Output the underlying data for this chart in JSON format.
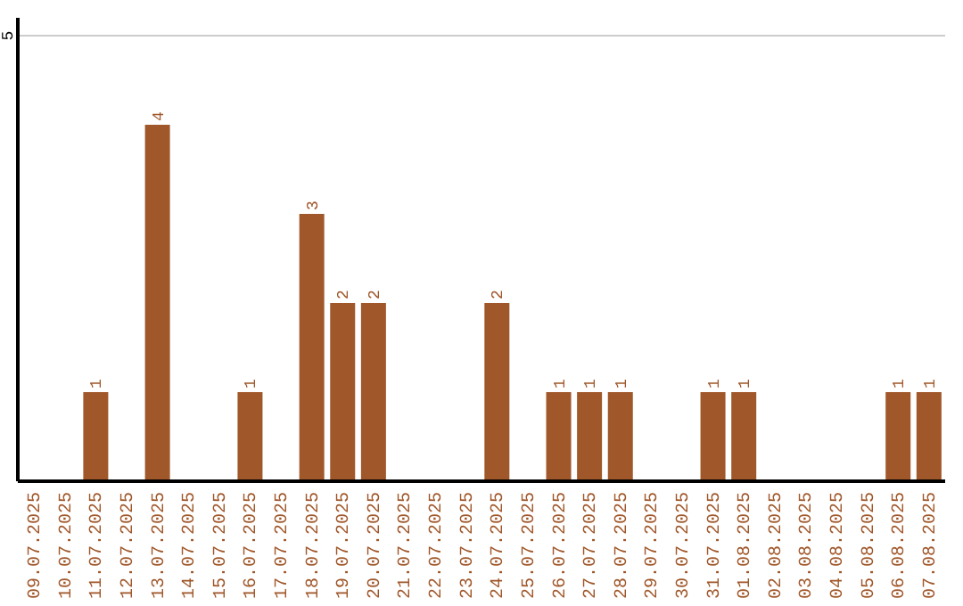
{
  "chart_data": {
    "type": "bar",
    "categories": [
      "09.07.2025",
      "10.07.2025",
      "11.07.2025",
      "12.07.2025",
      "13.07.2025",
      "14.07.2025",
      "15.07.2025",
      "16.07.2025",
      "17.07.2025",
      "18.07.2025",
      "19.07.2025",
      "20.07.2025",
      "21.07.2025",
      "22.07.2025",
      "23.07.2025",
      "24.07.2025",
      "25.07.2025",
      "26.07.2025",
      "27.07.2025",
      "28.07.2025",
      "29.07.2025",
      "30.07.2025",
      "31.07.2025",
      "01.08.2025",
      "02.08.2025",
      "03.08.2025",
      "04.08.2025",
      "05.08.2025",
      "06.08.2025",
      "07.08.2025"
    ],
    "values": [
      0,
      0,
      1,
      0,
      4,
      0,
      0,
      1,
      0,
      3,
      2,
      2,
      0,
      0,
      0,
      2,
      0,
      1,
      1,
      1,
      0,
      0,
      1,
      1,
      0,
      0,
      0,
      0,
      1,
      1
    ],
    "value_labels": [
      null,
      null,
      "1",
      null,
      "4",
      null,
      null,
      "1",
      null,
      "3",
      "2",
      "2",
      null,
      null,
      null,
      "2",
      null,
      "1",
      "1",
      "1",
      null,
      null,
      "1",
      "1",
      null,
      null,
      null,
      null,
      "1",
      "1"
    ],
    "color": "#a0572a",
    "ylim": [
      0,
      5.2
    ],
    "yticks": [
      5
    ],
    "grid": "y"
  }
}
